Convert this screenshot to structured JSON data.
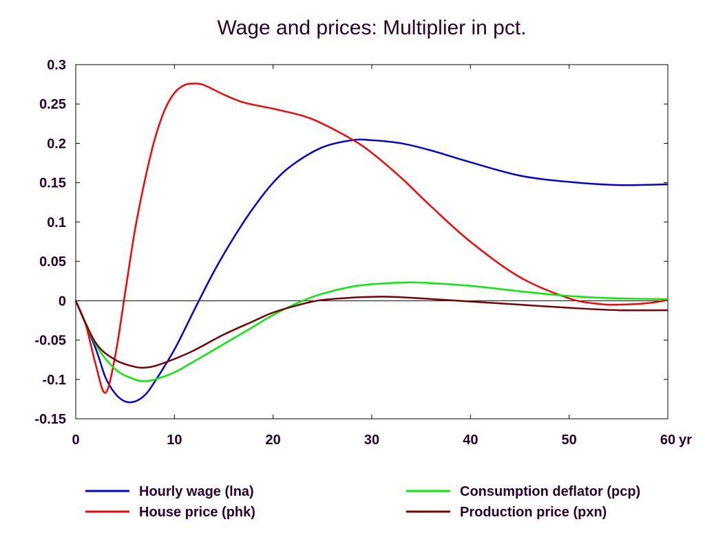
{
  "chart_data": {
    "type": "line",
    "title": "Wage and prices: Multiplier in pct.",
    "x_unit_label": "yr",
    "xlim": [
      0,
      60
    ],
    "ylim": [
      -0.15,
      0.3
    ],
    "x_ticks": [
      0,
      10,
      20,
      30,
      40,
      50,
      60
    ],
    "x_tick_labels": [
      "0",
      "10",
      "20",
      "30",
      "40",
      "50",
      "60"
    ],
    "y_ticks": [
      0.3,
      0.25,
      0.2,
      0.15,
      0.1,
      0.05,
      0,
      -0.05,
      -0.1,
      -0.15
    ],
    "y_tick_labels": [
      "0.3",
      "0.25",
      "0.2",
      "0.15",
      "0.1",
      "0.05",
      "0",
      "-0.05",
      "-0.1",
      "-0.15"
    ],
    "zero_line": true,
    "grid": false,
    "legend_position": "bottom",
    "series": [
      {
        "name": "Hourly wage (lna)",
        "color": "#0000dd",
        "x": [
          0,
          2,
          3,
          4,
          5,
          6,
          7,
          8,
          10,
          12,
          14,
          16,
          18,
          20,
          22,
          25,
          28,
          30,
          33,
          36,
          40,
          45,
          50,
          55,
          60
        ],
        "y": [
          0,
          -0.06,
          -0.097,
          -0.118,
          -0.128,
          -0.128,
          -0.12,
          -0.103,
          -0.062,
          -0.012,
          0.037,
          0.08,
          0.118,
          0.15,
          0.173,
          0.195,
          0.204,
          0.204,
          0.2,
          0.191,
          0.176,
          0.159,
          0.151,
          0.147,
          0.148
        ]
      },
      {
        "name": "House price (phk)",
        "color": "#ff0000",
        "x": [
          0,
          1,
          2,
          3,
          4,
          5,
          6,
          7,
          8,
          9,
          10,
          11,
          12,
          13,
          15,
          17,
          20,
          23,
          25,
          28,
          30,
          33,
          36,
          40,
          45,
          50,
          53,
          55,
          58,
          60
        ],
        "y": [
          0,
          -0.03,
          -0.08,
          -0.117,
          -0.07,
          0.01,
          0.09,
          0.153,
          0.205,
          0.242,
          0.264,
          0.274,
          0.276,
          0.274,
          0.262,
          0.252,
          0.244,
          0.235,
          0.225,
          0.205,
          0.188,
          0.156,
          0.12,
          0.075,
          0.03,
          0.003,
          -0.004,
          -0.005,
          -0.003,
          0.001
        ]
      },
      {
        "name": "Consumption deflator (pcp)",
        "color": "#00ee00",
        "x": [
          0,
          2,
          4,
          6,
          7,
          8,
          10,
          12,
          15,
          18,
          20,
          23,
          25,
          28,
          30,
          33,
          35,
          40,
          45,
          50,
          55,
          60
        ],
        "y": [
          0,
          -0.055,
          -0.087,
          -0.1,
          -0.102,
          -0.1,
          -0.091,
          -0.077,
          -0.055,
          -0.033,
          -0.018,
          0.0,
          0.009,
          0.018,
          0.021,
          0.023,
          0.023,
          0.019,
          0.012,
          0.006,
          0.003,
          0.002
        ]
      },
      {
        "name": "Production price (pxn)",
        "color": "#770000",
        "x": [
          0,
          2,
          4,
          6,
          7,
          8,
          10,
          12,
          15,
          18,
          20,
          23,
          25,
          28,
          30,
          32,
          35,
          40,
          45,
          50,
          55,
          60
        ],
        "y": [
          0,
          -0.053,
          -0.075,
          -0.084,
          -0.085,
          -0.083,
          -0.074,
          -0.063,
          -0.043,
          -0.026,
          -0.015,
          -0.004,
          0.001,
          0.004,
          0.005,
          0.005,
          0.003,
          -0.001,
          -0.005,
          -0.009,
          -0.012,
          -0.012
        ]
      }
    ]
  }
}
